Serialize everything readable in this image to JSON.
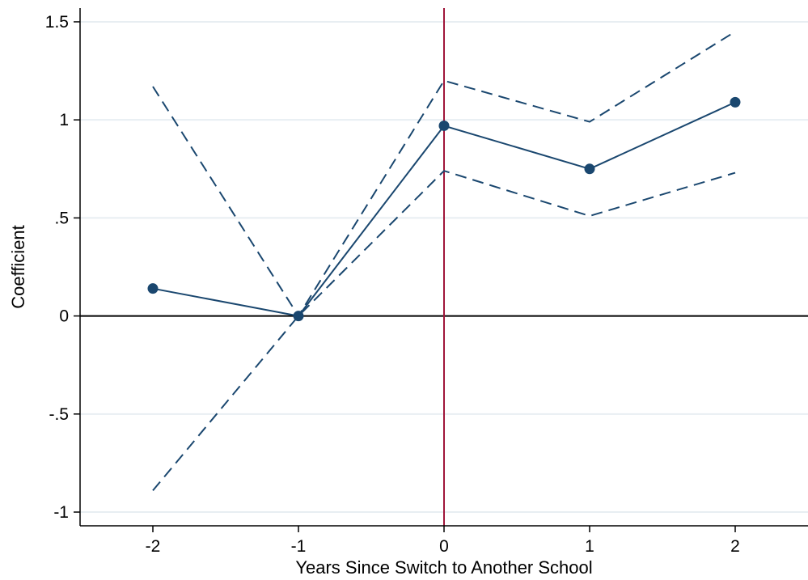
{
  "chart_data": {
    "type": "line",
    "xlabel": "Years Since Switch to Another School",
    "ylabel": "Coefficient",
    "x": [
      -2,
      -1,
      0,
      1,
      2
    ],
    "xlim": [
      -2.5,
      2.5
    ],
    "ylim": [
      -1.07,
      1.57
    ],
    "xticks": [
      -2,
      -1,
      0,
      1,
      2
    ],
    "xtick_labels": [
      "-2",
      "-1",
      "0",
      "1",
      "2"
    ],
    "yticks": [
      -1,
      -0.5,
      0,
      0.5,
      1,
      1.5
    ],
    "ytick_labels": [
      "-1",
      "-.5",
      "0",
      ".5",
      "1",
      "1.5"
    ],
    "grid": true,
    "reference_lines": {
      "horizontal_y": 0,
      "vertical_x": 0
    },
    "series": [
      {
        "role": "estimate",
        "style": "solid-with-markers",
        "values": [
          0.14,
          0.0,
          0.97,
          0.75,
          1.09
        ]
      },
      {
        "role": "ci-upper",
        "style": "dashed",
        "values": [
          1.17,
          0.0,
          1.2,
          0.99,
          1.45
        ]
      },
      {
        "role": "ci-lower",
        "style": "dashed",
        "values": [
          -0.89,
          0.0,
          0.74,
          0.51,
          0.73
        ]
      }
    ],
    "colors": {
      "series": "#1a476f",
      "vertical_line": "#a0163a",
      "zero_line": "#000000",
      "grid": "#e8eef2",
      "axis": "#000000"
    }
  }
}
